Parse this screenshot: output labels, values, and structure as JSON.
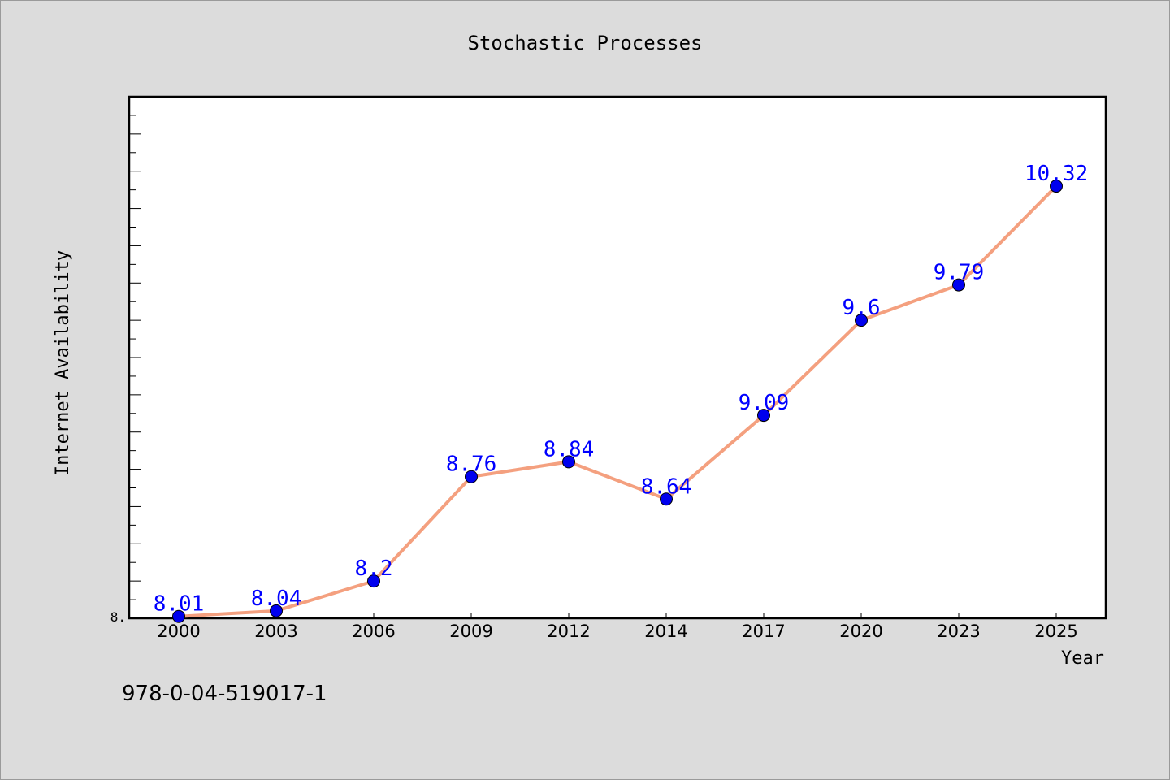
{
  "chart_data": {
    "type": "line",
    "title": "Stochastic Processes",
    "xlabel": "Year",
    "ylabel": "Internet Availability",
    "y_tick_label": "8.",
    "categories": [
      "2000",
      "2003",
      "2006",
      "2009",
      "2012",
      "2014",
      "2017",
      "2020",
      "2023",
      "2025"
    ],
    "series": [
      {
        "values": [
          8.01,
          8.04,
          8.2,
          8.76,
          8.84,
          8.64,
          9.09,
          9.6,
          9.79,
          10.32
        ],
        "labels": [
          "8.01",
          "8.04",
          "8.2",
          "8.76",
          "8.84",
          "8.64",
          "9.09",
          "9.6",
          "9.79",
          "10.32"
        ],
        "line_color": "#f4a07f",
        "marker_color": "#0000ee",
        "label_color": "#0000ff"
      }
    ],
    "ylim": [
      8.0,
      10.8
    ],
    "y_minor_step": 0.1,
    "grid": false,
    "legend": "none"
  },
  "footer": {
    "isbn": "978-0-04-519017-1"
  },
  "colors": {
    "background": "#dcdcdc",
    "plot_area": "#ffffff"
  }
}
